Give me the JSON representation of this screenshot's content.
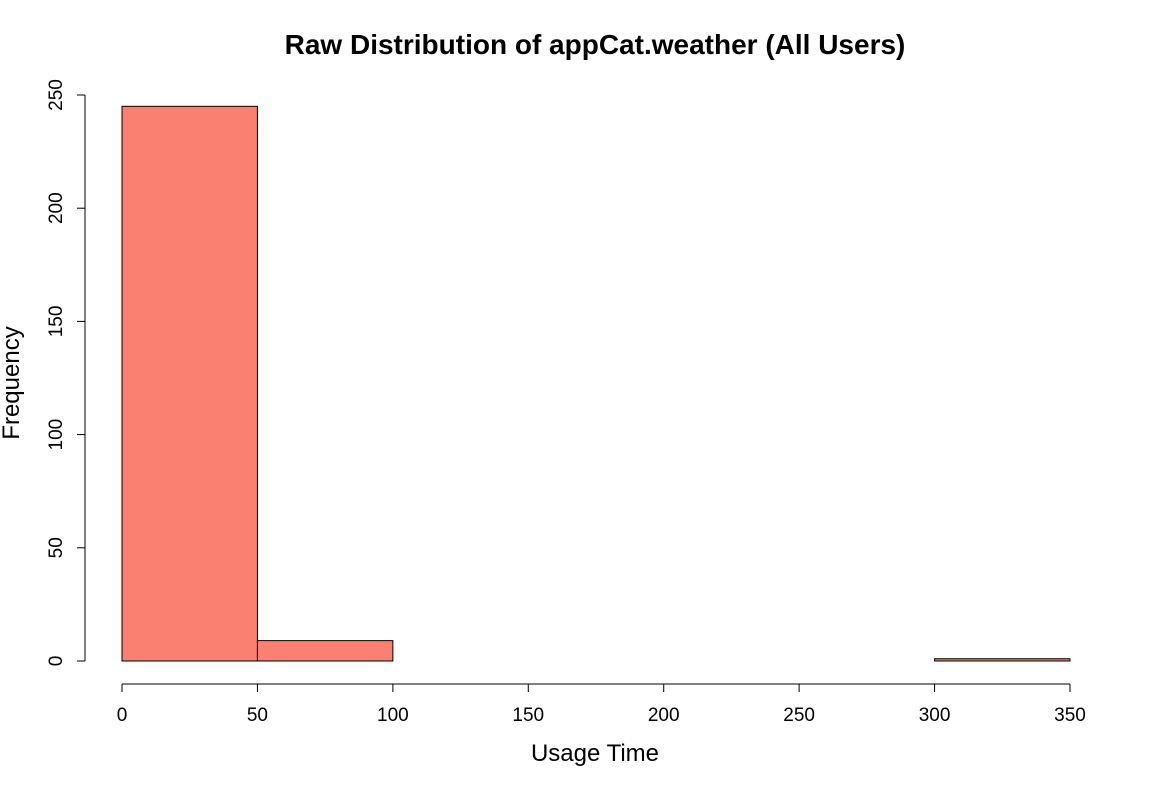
{
  "chart_data": {
    "type": "bar",
    "title": "Raw Distribution of appCat.weather (All Users)",
    "xlabel": "Usage Time",
    "ylabel": "Frequency",
    "bins": [
      {
        "x0": 0,
        "x1": 50,
        "count": 245
      },
      {
        "x0": 50,
        "x1": 100,
        "count": 9
      },
      {
        "x0": 100,
        "x1": 150,
        "count": 0
      },
      {
        "x0": 150,
        "x1": 200,
        "count": 0
      },
      {
        "x0": 200,
        "x1": 250,
        "count": 0
      },
      {
        "x0": 250,
        "x1": 300,
        "count": 0
      },
      {
        "x0": 300,
        "x1": 350,
        "count": 1
      }
    ],
    "xlim": [
      0,
      350
    ],
    "ylim": [
      0,
      250
    ],
    "x_ticks": [
      "0",
      "50",
      "100",
      "150",
      "200",
      "250",
      "300",
      "350"
    ],
    "y_ticks": [
      "0",
      "50",
      "100",
      "150",
      "200",
      "250"
    ],
    "grid": false,
    "bar_color": "#FA8072",
    "bar_border_color": "#000000"
  }
}
